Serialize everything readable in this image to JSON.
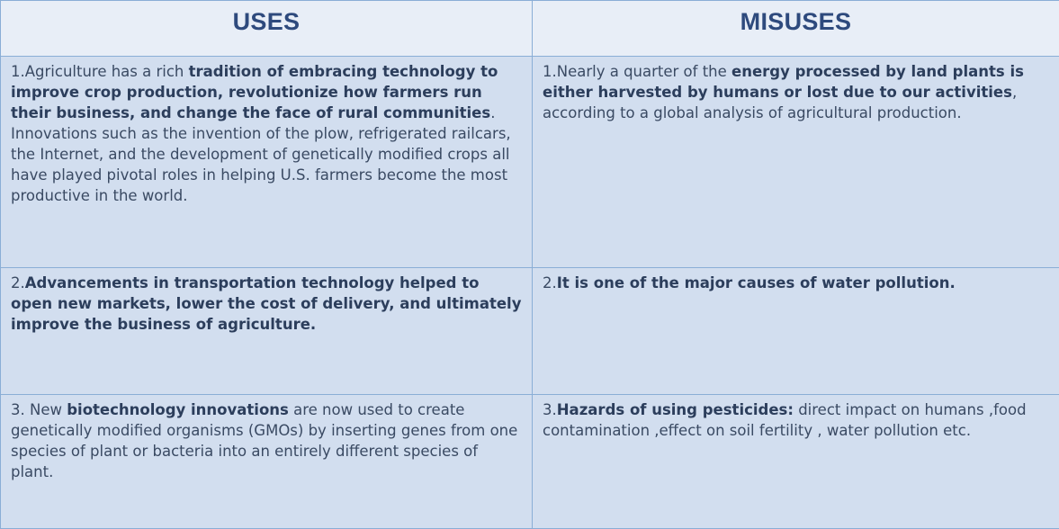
{
  "header": {
    "uses": "USES",
    "misuses": "MISUSES"
  },
  "rows": [
    {
      "use": [
        {
          "text": "1.Agriculture has a rich ",
          "bold": false
        },
        {
          "text": "tradition of embracing technology to improve crop production, revolutionize how farmers run their business, and change the face of rural communities",
          "bold": true
        },
        {
          "text": ". Innovations such as the invention of the plow, refrigerated railcars, the Internet, and the development of genetically modified crops all have played pivotal roles in helping U.S. farmers become the most productive in the world.",
          "bold": false
        }
      ],
      "misuse": [
        {
          "text": "1.Nearly a quarter of the ",
          "bold": false
        },
        {
          "text": "energy processed by land plants is either harvested by humans or lost due to our activities",
          "bold": true
        },
        {
          "text": ", according to a global analysis of agricultural production.",
          "bold": false
        }
      ]
    },
    {
      "use": [
        {
          "text": "2.",
          "bold": false
        },
        {
          "text": "Advancements in transportation technology helped to open new markets, lower the cost of delivery, and ultimately improve the business of agriculture.",
          "bold": true
        }
      ],
      "misuse": [
        {
          "text": "2.",
          "bold": false
        },
        {
          "text": "It is one of the major causes of water pollution.",
          "bold": true
        }
      ]
    },
    {
      "use": [
        {
          "text": "3. New ",
          "bold": false
        },
        {
          "text": "biotechnology innovations",
          "bold": true
        },
        {
          "text": " are now used to create genetically modified organisms (GMOs) by inserting genes from one species of plant or bacteria into an entirely different species of plant.",
          "bold": false
        }
      ],
      "misuse": [
        {
          "text": "3.",
          "bold": false
        },
        {
          "text": "Hazards of using pesticides:",
          "bold": true
        },
        {
          "text": " direct impact on humans ,food contamination ,effect on soil fertility , water pollution etc.",
          "bold": false
        }
      ]
    }
  ],
  "colors": {
    "header_bg": "#e8eef7",
    "cell_bg": "#d2deef",
    "border": "#8aaed6",
    "header_text": "#2e4a7d",
    "body_text": "#3a4a63"
  }
}
